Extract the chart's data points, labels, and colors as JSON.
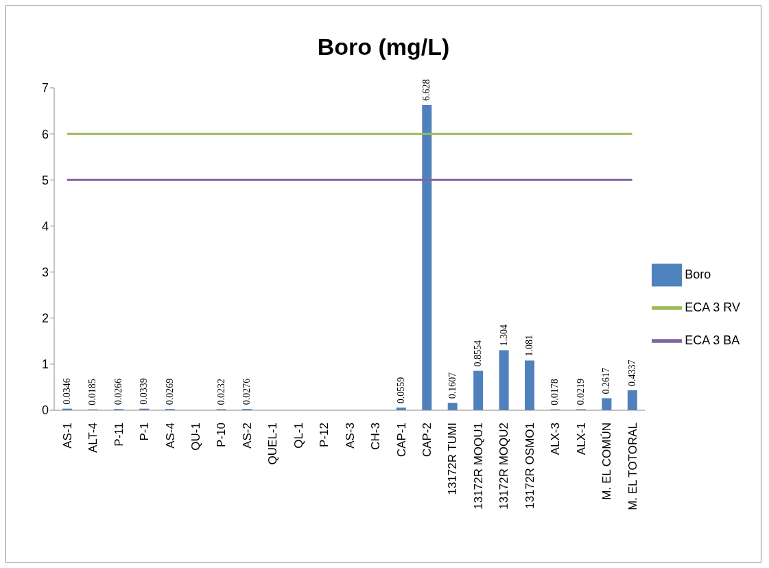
{
  "chart_data": {
    "type": "bar",
    "title": "Boro (mg/L)",
    "categories": [
      "AS-1",
      "ALT-4",
      "P-11",
      "P-1",
      "AS-4",
      "QU-1",
      "P-10",
      "AS-2",
      "QUEL-1",
      "QL-1",
      "P-12",
      "AS-3",
      "CH-3",
      "CAP-1",
      "CAP-2",
      "13172R TUMI",
      "13172R MOQU1",
      "13172R MOQU2",
      "13172R OSMO1",
      "ALX-3",
      "ALX-1",
      "M. EL COMÚN",
      "M. EL TOTORAL"
    ],
    "series": [
      {
        "name": "Boro",
        "type": "bar",
        "color": "#4f81bd",
        "values": [
          0.0346,
          0.0185,
          0.0266,
          0.0339,
          0.0269,
          null,
          0.0232,
          0.0276,
          null,
          null,
          null,
          null,
          null,
          0.0559,
          6.628,
          0.1607,
          0.8554,
          1.304,
          1.081,
          0.0178,
          0.0219,
          0.2617,
          0.4337
        ],
        "value_labels": [
          "0.0346",
          "0.0185",
          "0.0266",
          "0.0339",
          "0.0269",
          null,
          "0.0232",
          "0.0276",
          null,
          null,
          null,
          null,
          null,
          "0.0559",
          "6.628",
          "0.1607",
          "0.8554",
          "1.304",
          "1.081",
          "0.0178",
          "0.0219",
          "0.2617",
          "0.4337"
        ]
      },
      {
        "name": "ECA 3 RV",
        "type": "line",
        "color": "#9bbb59",
        "values": [
          6,
          6,
          6,
          6,
          6,
          6,
          6,
          6,
          6,
          6,
          6,
          6,
          6,
          6,
          6,
          6,
          6,
          6,
          6,
          6,
          6,
          6,
          6
        ]
      },
      {
        "name": "ECA 3 BA",
        "type": "line",
        "color": "#8064a2",
        "values": [
          5,
          5,
          5,
          5,
          5,
          5,
          5,
          5,
          5,
          5,
          5,
          5,
          5,
          5,
          5,
          5,
          5,
          5,
          5,
          5,
          5,
          5,
          5
        ]
      }
    ],
    "ylim": [
      0,
      7
    ],
    "yticks": [
      0,
      1,
      2,
      3,
      4,
      5,
      6,
      7
    ],
    "grid": false,
    "legend": "right",
    "marker": "none"
  }
}
